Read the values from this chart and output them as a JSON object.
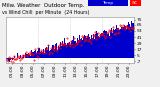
{
  "title": "Milw. Weather  Outdoor Temp.",
  "title_line2": "vs Wind Chill  per Minute  (24 Hours)",
  "bg_color": "#f0f0f0",
  "plot_bg_color": "#ffffff",
  "bar_color": "#0000cc",
  "dot_color": "#ff0000",
  "legend_temp_color": "#0000cc",
  "legend_wc_color": "#ff0000",
  "ylim": [
    -10,
    80
  ],
  "xlim": [
    0,
    1440
  ],
  "y_ticks": [
    -7,
    5,
    17,
    29,
    41,
    53,
    65,
    75
  ],
  "ylabel_values": [
    "-7",
    "5",
    "17",
    "29",
    "41",
    "53",
    "65",
    "75"
  ],
  "x_tick_hours": [
    1,
    3,
    5,
    7,
    9,
    11,
    13,
    15,
    17,
    19,
    21,
    23
  ],
  "x_ticks_labels": [
    "01:00",
    "03:00",
    "05:00",
    "07:00",
    "09:00",
    "11:00",
    "13:00",
    "15:00",
    "17:00",
    "19:00",
    "21:00",
    "23:00"
  ],
  "n_minutes": 1440,
  "temp_start": -5,
  "temp_end": 68,
  "wc_start": -7,
  "wc_end": 63,
  "noise_scale": 4.0,
  "wc_noise_scale": 5.0,
  "bar_width": 1.2,
  "title_fontsize": 4.0,
  "tick_fontsize": 3.2,
  "vline_positions": [
    360,
    720,
    1080
  ],
  "vline_color": "#aaaaaa",
  "dot_step": 10,
  "dot_markersize": 0.8
}
